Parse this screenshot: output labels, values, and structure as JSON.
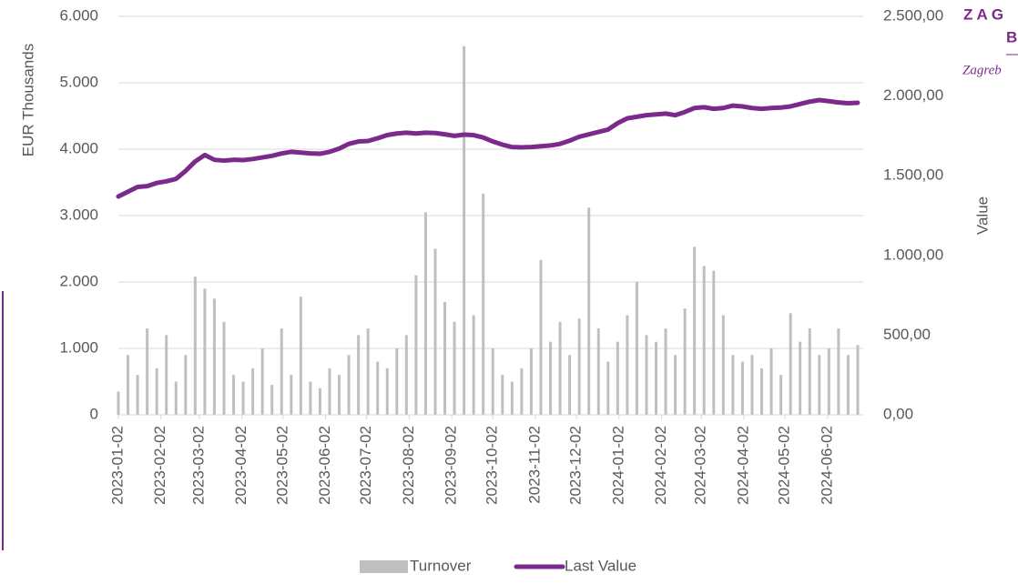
{
  "chart_data": {
    "type": "bar_line",
    "y_axis_label": "EUR Thousands",
    "y2_axis_label": "Value",
    "logo": {
      "line1": "Z A G",
      "line2": "B",
      "line3": "Zagreb"
    },
    "x": [
      "2023-01-02",
      "2023-01-09",
      "2023-01-16",
      "2023-01-23",
      "2023-01-30",
      "2023-02-06",
      "2023-02-13",
      "2023-02-20",
      "2023-02-27",
      "2023-03-06",
      "2023-03-13",
      "2023-03-20",
      "2023-03-27",
      "2023-04-03",
      "2023-04-10",
      "2023-04-17",
      "2023-04-24",
      "2023-05-01",
      "2023-05-08",
      "2023-05-15",
      "2023-05-22",
      "2023-05-29",
      "2023-06-05",
      "2023-06-12",
      "2023-06-19",
      "2023-06-26",
      "2023-07-03",
      "2023-07-10",
      "2023-07-17",
      "2023-07-24",
      "2023-07-31",
      "2023-08-07",
      "2023-08-14",
      "2023-08-21",
      "2023-08-28",
      "2023-09-04",
      "2023-09-11",
      "2023-09-18",
      "2023-09-25",
      "2023-10-02",
      "2023-10-09",
      "2023-10-16",
      "2023-10-23",
      "2023-10-30",
      "2023-11-06",
      "2023-11-13",
      "2023-11-20",
      "2023-11-27",
      "2023-12-04",
      "2023-12-11",
      "2023-12-18",
      "2023-12-25",
      "2024-01-01",
      "2024-01-08",
      "2024-01-15",
      "2024-01-22",
      "2024-01-29",
      "2024-02-05",
      "2024-02-12",
      "2024-02-19",
      "2024-02-26",
      "2024-03-04",
      "2024-03-11",
      "2024-03-18",
      "2024-03-25",
      "2024-04-01",
      "2024-04-08",
      "2024-04-15",
      "2024-04-22",
      "2024-04-29",
      "2024-05-06",
      "2024-05-13",
      "2024-05-20",
      "2024-05-27",
      "2024-06-03",
      "2024-06-10",
      "2024-06-17",
      "2024-06-24"
    ],
    "xlim": [
      "2023-01-02",
      "2024-06-28"
    ],
    "xticks": [
      "2023-01-02",
      "2023-02-02",
      "2023-03-02",
      "2023-04-02",
      "2023-05-02",
      "2023-06-02",
      "2023-07-02",
      "2023-08-02",
      "2023-09-02",
      "2023-10-02",
      "2023-11-02",
      "2023-12-02",
      "2024-01-02",
      "2024-02-02",
      "2024-03-02",
      "2024-04-02",
      "2024-05-02",
      "2024-06-02"
    ],
    "series": [
      {
        "name": "Turnover",
        "color": "#bfbfbf",
        "kind": "bar",
        "values": [
          350,
          900,
          600,
          1300,
          700,
          1200,
          500,
          900,
          2080,
          1900,
          1750,
          1400,
          600,
          500,
          700,
          1000,
          450,
          1300,
          600,
          1780,
          500,
          400,
          700,
          600,
          900,
          1200,
          1300,
          800,
          700,
          1000,
          1200,
          2100,
          3050,
          2500,
          1700,
          1400,
          5550,
          1500,
          3330,
          1000,
          600,
          500,
          700,
          1000,
          2330,
          1100,
          1400,
          900,
          1450,
          3120,
          1300,
          800,
          1100,
          1500,
          2000,
          1200,
          1100,
          1300,
          900,
          1600,
          2530,
          2240,
          2170,
          1500,
          900,
          800,
          900,
          700,
          1000,
          600,
          1530,
          1100,
          1300,
          900,
          1000,
          1300,
          900,
          1050
        ]
      },
      {
        "name": "Last Value",
        "color": "#7b2a8b",
        "kind": "line",
        "axis": "y2",
        "values": [
          1370,
          1400,
          1430,
          1435,
          1455,
          1465,
          1480,
          1530,
          1590,
          1630,
          1600,
          1595,
          1600,
          1598,
          1605,
          1615,
          1625,
          1640,
          1650,
          1645,
          1640,
          1638,
          1650,
          1670,
          1700,
          1715,
          1718,
          1735,
          1755,
          1765,
          1770,
          1765,
          1770,
          1768,
          1760,
          1750,
          1758,
          1755,
          1740,
          1715,
          1695,
          1680,
          1678,
          1680,
          1685,
          1690,
          1700,
          1720,
          1745,
          1760,
          1775,
          1790,
          1830,
          1860,
          1870,
          1880,
          1885,
          1890,
          1880,
          1900,
          1925,
          1930,
          1920,
          1925,
          1940,
          1935,
          1925,
          1920,
          1925,
          1928,
          1935,
          1950,
          1965,
          1975,
          1968,
          1960,
          1955,
          1958
        ]
      }
    ],
    "ylim": [
      0,
      6000
    ],
    "yticks": [
      0,
      {
        "value": 1000,
        "label": "1.000"
      },
      {
        "value": 2000,
        "label": "2.000"
      },
      {
        "value": 3000,
        "label": "3.000"
      },
      {
        "value": 4000,
        "label": "4.000"
      },
      {
        "value": 5000,
        "label": "5.000"
      },
      {
        "value": 6000,
        "label": "6.000"
      }
    ],
    "y2lim": [
      0,
      2500
    ],
    "y2ticks": [
      {
        "value": 0,
        "label": "0,00"
      },
      {
        "value": 500,
        "label": "500,00"
      },
      {
        "value": 1000,
        "label": "1.000,00"
      },
      {
        "value": 1500,
        "label": "1.500,00"
      },
      {
        "value": 2000,
        "label": "2.000,00"
      },
      {
        "value": 2500,
        "label": "2.500,00"
      }
    ],
    "grid": true,
    "legend": "bottom"
  }
}
